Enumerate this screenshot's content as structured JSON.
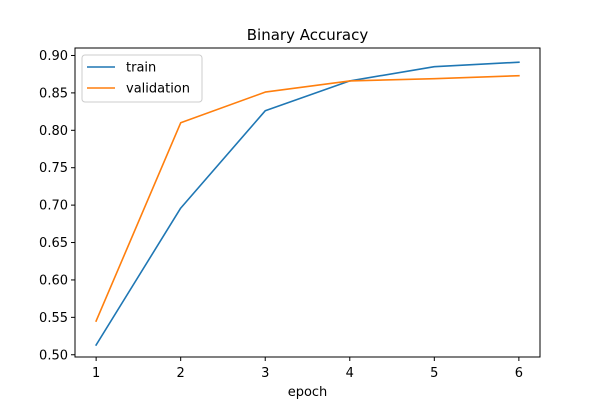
{
  "chart_data": {
    "type": "line",
    "title": "Binary Accuracy",
    "xlabel": "epoch",
    "ylabel": "",
    "x": [
      1,
      2,
      3,
      4,
      5,
      6
    ],
    "xlim": [
      0.75,
      6.25
    ],
    "ylim": [
      0.497,
      0.91
    ],
    "xticks": [
      1,
      2,
      3,
      4,
      5,
      6
    ],
    "yticks": [
      0.5,
      0.55,
      0.6,
      0.65,
      0.7,
      0.75,
      0.8,
      0.85,
      0.9
    ],
    "grid": false,
    "legend_position": "top-left",
    "series": [
      {
        "name": "train",
        "color": "#1f77b4",
        "values": [
          0.513,
          0.696,
          0.826,
          0.866,
          0.885,
          0.891
        ]
      },
      {
        "name": "validation",
        "color": "#ff7f0e",
        "values": [
          0.545,
          0.81,
          0.851,
          0.866,
          0.869,
          0.873
        ]
      }
    ]
  }
}
